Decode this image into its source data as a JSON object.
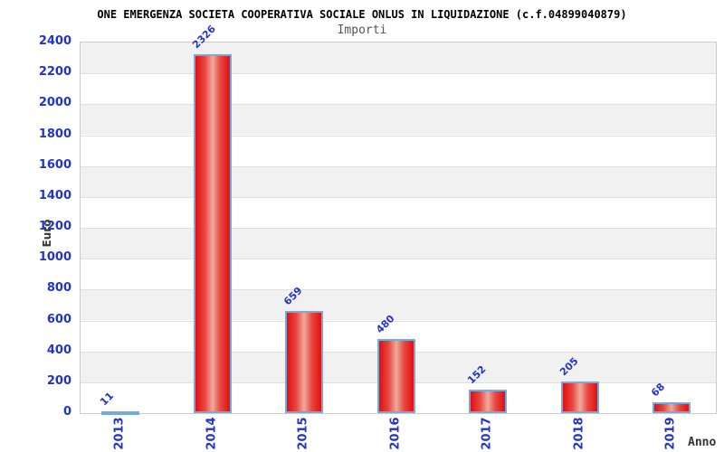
{
  "header": {
    "title": "ONE EMERGENZA SOCIETA COOPERATIVA SOCIALE ONLUS IN LIQUIDAZIONE (c.f.04899040879)",
    "subtitle": "Importi"
  },
  "chart_data": {
    "type": "bar",
    "title": "ONE EMERGENZA SOCIETA COOPERATIVA SOCIALE ONLUS IN LIQUIDAZIONE (c.f.04899040879)",
    "subtitle": "Importi",
    "categories": [
      "2013",
      "2014",
      "2015",
      "2016",
      "2017",
      "2018",
      "2019"
    ],
    "values": [
      11,
      2326,
      659,
      480,
      152,
      205,
      68
    ],
    "xlabel": "Anno",
    "ylabel": "Euro",
    "ylim": [
      0,
      2400
    ],
    "ytick_step": 200,
    "ytick_labels": [
      "0",
      "200",
      "400",
      "600",
      "800",
      "1000",
      "1200",
      "1400",
      "1600",
      "1800",
      "2000",
      "2200",
      "2400"
    ],
    "grid": true,
    "legend": false,
    "bands": "alternating horizontal gray/white every 200 units, gray band at top (2200-2400)"
  },
  "colors": {
    "axis_text_blue": "#2233cc",
    "bar_red_edge": "#e01010",
    "bar_red_center": "#eeab9e",
    "bar_border_blue": "#74aadd",
    "band_gray": "#f1f1f1",
    "gridline": "#e0e0e0",
    "plot_border": "#cccccc",
    "title_color": "#000000",
    "subtitle_color": "#555555",
    "axis_title_color": "#333333"
  }
}
